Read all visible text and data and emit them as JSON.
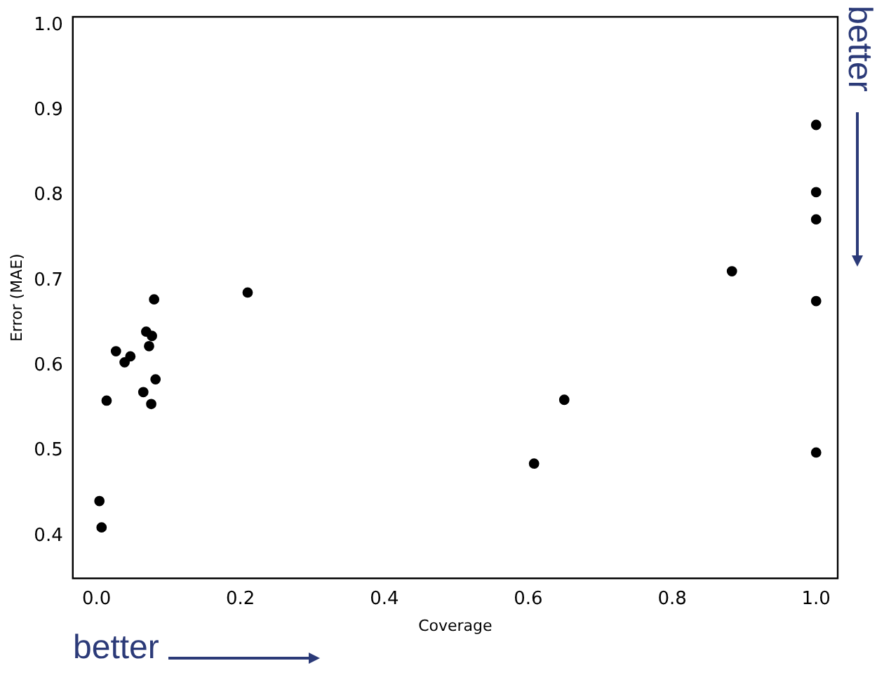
{
  "chart_data": {
    "type": "scatter",
    "xlabel": "Coverage",
    "ylabel": "Error (MAE)",
    "x": [
      0.004,
      0.007,
      0.014,
      0.027,
      0.039,
      0.047,
      0.065,
      0.069,
      0.077,
      0.073,
      0.08,
      0.082,
      0.076,
      0.21,
      1.0,
      1.0,
      1.0,
      1.0,
      1.0,
      0.883,
      0.65,
      0.608
    ],
    "series": [
      {
        "color": "#000000",
        "values": [
          0.441,
          0.41,
          0.559,
          0.617,
          0.604,
          0.611,
          0.569,
          0.64,
          0.635,
          0.623,
          0.678,
          0.584,
          0.555,
          0.686,
          0.883,
          0.804,
          0.772,
          0.676,
          0.498,
          0.711,
          0.56,
          0.485
        ]
      }
    ],
    "xlim": [
      -0.033,
      1.03
    ],
    "ylim": [
      0.35,
      1.01
    ],
    "xticks": [
      {
        "value": 0,
        "label": "0.0"
      },
      0.2,
      0.4,
      0.6,
      0.8,
      {
        "value": 1,
        "label": "1.0"
      }
    ],
    "yticks": [
      0.4,
      0.5,
      0.6,
      0.7,
      0.8,
      0.9,
      {
        "value": 1,
        "label": "1.0"
      }
    ],
    "annotations": [
      "better",
      "better"
    ],
    "grid": false,
    "legend": false,
    "marker": "circle"
  }
}
